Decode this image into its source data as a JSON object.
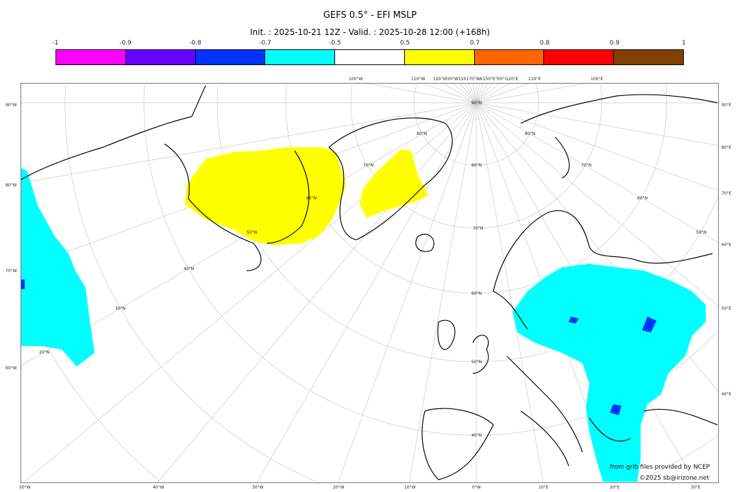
{
  "title": "GEFS 0.5° - EFI MSLP",
  "subtitle": "Init. : 2025-10-21 12Z - Valid. : 2025-10-28 12:00 (+168h)",
  "colorbar": {
    "colors": [
      "#ff00ff",
      "#6600ff",
      "#0033ff",
      "#00ffff",
      "#ffffff",
      "#ffff00",
      "#ff6600",
      "#ff0000",
      "#804000"
    ],
    "ticks": [
      "-1",
      "-0.9",
      "-0.8",
      "-0.7",
      "-0.5",
      "0.5",
      "0.7",
      "0.8",
      "0.9",
      "1"
    ]
  },
  "left_labels": [
    "90°W",
    "80°W",
    "70°W",
    "60°W"
  ],
  "right_labels": [
    "90°E",
    "80°E",
    "70°E",
    "60°E",
    "50°E",
    "40°E"
  ],
  "bottom_labels": [
    "50°W",
    "40°W",
    "30°W",
    "20°W",
    "10°W",
    "0°W",
    "10°E",
    "20°E",
    "30°E"
  ],
  "top_labels": [
    "100°W",
    "110°W",
    "120°W30°W150170°W€150°E°E0°I120°E",
    "110°E",
    "100°E"
  ],
  "lat_labels": [
    "90°N",
    "80°N",
    "70°N",
    "60°N",
    "50°N",
    "40°N",
    "80°N",
    "70°N",
    "60°N",
    "50°N",
    "80°N",
    "70°N",
    "60°N",
    "50°N",
    "40°N",
    "30°N",
    "20°N"
  ],
  "credits": {
    "line1": "from grib files provided by NCEP",
    "line2": "©2025 sb@irizone.net"
  }
}
